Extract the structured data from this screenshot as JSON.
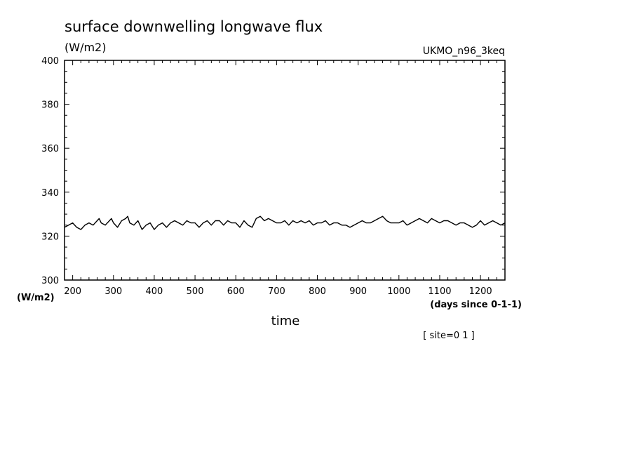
{
  "chart_data": {
    "type": "line",
    "title": "surface downwelling longwave flux",
    "units_label": "(W/m2)",
    "ylabel": "(W/m2)",
    "xlabel": "time",
    "x_units": "(days since 0-1-1)",
    "model_label": "UKMO_n96_3keq",
    "site_label": "[ site=0 1 ]",
    "xlim": [
      180,
      1260
    ],
    "ylim": [
      300,
      400
    ],
    "x_ticks": [
      200,
      300,
      400,
      500,
      600,
      700,
      800,
      900,
      1000,
      1100,
      1200
    ],
    "y_ticks": [
      300,
      320,
      340,
      360,
      380,
      400
    ],
    "grid": false,
    "series": [
      {
        "color": "#000000",
        "x": [
          180,
          190,
          200,
          210,
          220,
          230,
          240,
          250,
          260,
          265,
          270,
          280,
          290,
          295,
          300,
          310,
          320,
          330,
          335,
          340,
          350,
          360,
          370,
          380,
          390,
          400,
          410,
          420,
          430,
          440,
          450,
          460,
          470,
          480,
          490,
          500,
          510,
          520,
          530,
          540,
          550,
          560,
          570,
          580,
          590,
          600,
          610,
          620,
          630,
          640,
          650,
          660,
          670,
          680,
          690,
          700,
          710,
          720,
          730,
          740,
          750,
          760,
          770,
          780,
          790,
          800,
          810,
          820,
          830,
          840,
          850,
          860,
          870,
          880,
          890,
          900,
          910,
          920,
          930,
          940,
          950,
          960,
          970,
          980,
          990,
          1000,
          1010,
          1020,
          1030,
          1040,
          1050,
          1060,
          1070,
          1080,
          1090,
          1100,
          1110,
          1120,
          1130,
          1140,
          1150,
          1160,
          1170,
          1180,
          1190,
          1200,
          1210,
          1220,
          1230,
          1240,
          1250,
          1260
        ],
        "values": [
          324,
          325,
          326,
          324,
          323,
          325,
          326,
          325,
          327,
          328,
          326,
          325,
          327,
          328,
          326,
          324,
          327,
          328,
          329,
          326,
          325,
          327,
          323,
          325,
          326,
          323,
          325,
          326,
          324,
          326,
          327,
          326,
          325,
          327,
          326,
          326,
          324,
          326,
          327,
          325,
          327,
          327,
          325,
          327,
          326,
          326,
          324,
          327,
          325,
          324,
          328,
          329,
          327,
          328,
          327,
          326,
          326,
          327,
          325,
          327,
          326,
          327,
          326,
          327,
          325,
          326,
          326,
          327,
          325,
          326,
          326,
          325,
          325,
          324,
          325,
          326,
          327,
          326,
          326,
          327,
          328,
          329,
          327,
          326,
          326,
          326,
          327,
          325,
          326,
          327,
          328,
          327,
          326,
          328,
          327,
          326,
          327,
          327,
          326,
          325,
          326,
          326,
          325,
          324,
          325,
          327,
          325,
          326,
          327,
          326,
          325,
          326
        ]
      }
    ]
  }
}
